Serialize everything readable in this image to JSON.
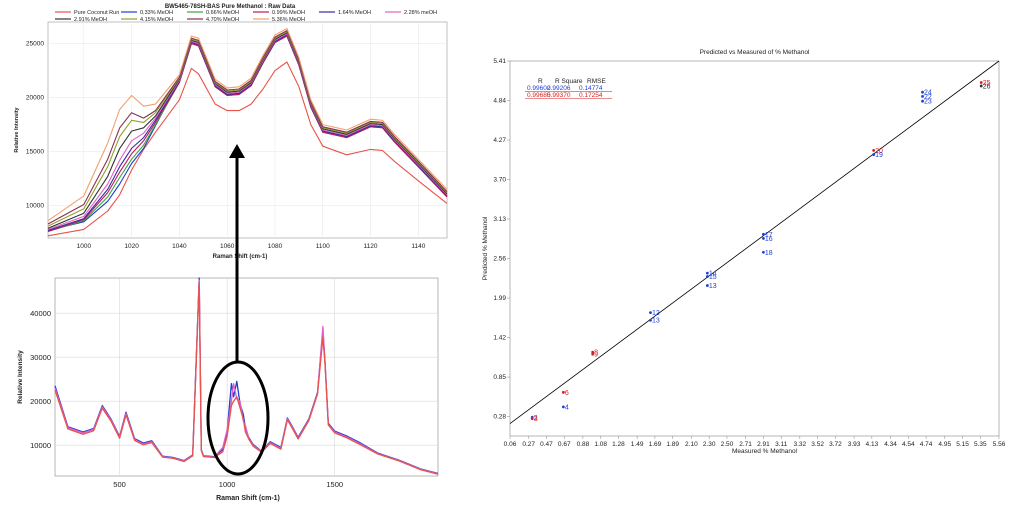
{
  "chart_data": [
    {
      "type": "line",
      "title": "BW5465-78SH-BAS Pure Methanol : Raw Data",
      "xlabel": "Raman Shift (cm-1)",
      "ylabel": "Relative Intensity",
      "xlim": [
        985,
        1152
      ],
      "ylim": [
        7000,
        27000
      ],
      "x_ticks": [
        "1000",
        "1020",
        "1040",
        "1060",
        "1080",
        "1100",
        "1120",
        "1140"
      ],
      "y_ticks": [
        "10000",
        "15000",
        "20000",
        "25000"
      ],
      "legend_position": "top",
      "x": [
        985,
        1000,
        1010,
        1015,
        1020,
        1025,
        1030,
        1040,
        1045,
        1048,
        1055,
        1060,
        1065,
        1070,
        1075,
        1080,
        1085,
        1090,
        1095,
        1100,
        1110,
        1120,
        1125,
        1130,
        1140,
        1152
      ],
      "series": [
        {
          "name": "Pure Coconut Run",
          "color": "#e8534b",
          "values": [
            7200,
            7800,
            9500,
            11000,
            13300,
            15200,
            16800,
            19800,
            22700,
            22200,
            19400,
            18800,
            18800,
            19400,
            20800,
            22500,
            23300,
            21000,
            17500,
            15500,
            14700,
            15200,
            15100,
            14100,
            12300,
            10200
          ]
        },
        {
          "name": "0.33% MeOH",
          "color": "#1f3fd6",
          "values": [
            7700,
            8500,
            10400,
            12000,
            13900,
            15300,
            17400,
            21600,
            25200,
            25000,
            21100,
            20300,
            20400,
            21200,
            23300,
            25300,
            25900,
            23200,
            19200,
            16900,
            16400,
            17400,
            17300,
            16000,
            13700,
            10900
          ]
        },
        {
          "name": "0.66% MeOH",
          "color": "#3aa63a",
          "values": [
            7600,
            8600,
            10800,
            12600,
            14300,
            15600,
            17500,
            21400,
            25000,
            24800,
            21000,
            20200,
            20300,
            21100,
            23200,
            25100,
            25700,
            23000,
            19100,
            16800,
            16300,
            17300,
            17200,
            15900,
            13600,
            10800
          ]
        },
        {
          "name": "0.99% MeOH",
          "color": "#c2185b",
          "values": [
            7600,
            8700,
            11200,
            13100,
            14800,
            16000,
            17700,
            21400,
            25000,
            24800,
            21000,
            20200,
            20300,
            21100,
            23200,
            25100,
            25700,
            23000,
            19100,
            16800,
            16300,
            17300,
            17200,
            15900,
            13600,
            10800
          ]
        },
        {
          "name": "1.64% MeOH",
          "color": "#3b2aa0",
          "values": [
            7700,
            8800,
            11500,
            13600,
            15300,
            16300,
            17900,
            21500,
            25100,
            24900,
            21100,
            20300,
            20400,
            21200,
            23300,
            25200,
            25800,
            23100,
            19200,
            16900,
            16400,
            17400,
            17300,
            16000,
            13700,
            10900
          ]
        },
        {
          "name": "2.28% meOH",
          "color": "#e060c8",
          "values": [
            7800,
            9000,
            12000,
            14200,
            16000,
            16700,
            18100,
            21600,
            25200,
            25000,
            21200,
            20400,
            20500,
            21300,
            23400,
            25300,
            25900,
            23200,
            19300,
            17000,
            16500,
            17500,
            17400,
            16100,
            13800,
            11000
          ]
        },
        {
          "name": "2.91% MeOH",
          "color": "#333333",
          "values": [
            7900,
            9300,
            12700,
            15300,
            16900,
            17200,
            18300,
            21700,
            25300,
            25100,
            21300,
            20500,
            20600,
            21400,
            23500,
            25400,
            26000,
            23300,
            19400,
            17100,
            16600,
            17600,
            17500,
            16200,
            13900,
            11100
          ]
        },
        {
          "name": "4.15% MeOH",
          "color": "#8fa32a",
          "values": [
            8100,
            9700,
            13600,
            16400,
            17900,
            17700,
            18600,
            21800,
            25400,
            25200,
            21400,
            20600,
            20700,
            21500,
            23600,
            25500,
            26100,
            23400,
            19500,
            17200,
            16700,
            17700,
            17600,
            16300,
            14000,
            11200
          ]
        },
        {
          "name": "4.70% MeOH",
          "color": "#8a3050",
          "values": [
            8300,
            10100,
            14300,
            17200,
            18600,
            18100,
            18800,
            21900,
            25500,
            25300,
            21500,
            20700,
            20800,
            21600,
            23700,
            25600,
            26200,
            23500,
            19600,
            17300,
            16800,
            17800,
            17700,
            16400,
            14100,
            11300
          ]
        },
        {
          "name": "5.36% MeOH",
          "color": "#f0a070",
          "values": [
            8600,
            10900,
            15800,
            18900,
            20200,
            19200,
            19400,
            22100,
            25700,
            25500,
            21700,
            20900,
            21000,
            21800,
            23900,
            25800,
            26400,
            23700,
            19800,
            17500,
            17000,
            18000,
            17900,
            16600,
            14300,
            11500
          ]
        }
      ]
    },
    {
      "type": "line",
      "title": "",
      "xlabel": "Raman Shift (cm-1)",
      "ylabel": "Relative Intensity",
      "xlim": [
        200,
        1980
      ],
      "ylim": [
        3000,
        48000
      ],
      "x_ticks": [
        "500",
        "1000",
        "1500"
      ],
      "y_ticks": [
        "10000",
        "20000",
        "30000",
        "40000"
      ],
      "x": [
        200,
        260,
        330,
        380,
        420,
        460,
        500,
        530,
        570,
        610,
        650,
        700,
        750,
        800,
        840,
        870,
        880,
        890,
        940,
        980,
        1000,
        1020,
        1030,
        1045,
        1060,
        1075,
        1085,
        1100,
        1120,
        1160,
        1200,
        1250,
        1280,
        1300,
        1330,
        1380,
        1420,
        1445,
        1455,
        1470,
        1500,
        1560,
        1620,
        1700,
        1800,
        1900,
        1980
      ],
      "series": [
        {
          "color": "#1f3fd6",
          "values": [
            23500,
            14200,
            13000,
            13800,
            19000,
            16000,
            12000,
            17500,
            11500,
            10500,
            11000,
            7500,
            7200,
            6500,
            7800,
            48000,
            9000,
            7600,
            7400,
            9000,
            13000,
            24000,
            21000,
            24500,
            19500,
            17000,
            14000,
            11800,
            10200,
            8600,
            10800,
            9500,
            16200,
            14500,
            11800,
            16000,
            22000,
            36000,
            29000,
            15000,
            13200,
            12000,
            10500,
            8200,
            6600,
            4600,
            3600
          ]
        },
        {
          "color": "#e060c8",
          "values": [
            23000,
            14000,
            12800,
            13600,
            18700,
            15800,
            11800,
            17200,
            11300,
            10300,
            10800,
            7400,
            7100,
            6400,
            7700,
            47500,
            8900,
            7500,
            7300,
            9500,
            13500,
            20000,
            24000,
            20500,
            20000,
            15500,
            14500,
            11600,
            10000,
            8500,
            10600,
            9300,
            16000,
            14300,
            11600,
            15800,
            21800,
            37000,
            28800,
            14800,
            13000,
            11800,
            10300,
            8100,
            6500,
            4500,
            3500
          ]
        },
        {
          "color": "#e8534b",
          "values": [
            22500,
            13700,
            12500,
            13300,
            18400,
            15500,
            11600,
            16900,
            11100,
            10100,
            10600,
            7300,
            7000,
            6300,
            7600,
            47000,
            8800,
            7400,
            7200,
            8500,
            12000,
            19000,
            20000,
            21000,
            18500,
            16000,
            13000,
            11400,
            9800,
            8400,
            10400,
            9100,
            15800,
            14100,
            11400,
            15600,
            21600,
            34500,
            28600,
            14600,
            12800,
            11600,
            10100,
            8000,
            6400,
            4400,
            3400
          ]
        }
      ]
    },
    {
      "type": "scatter",
      "title": "Predicted vs Measured of % Methanol",
      "xlabel": "Measured % Methanol",
      "ylabel": "Predicted % Methanol",
      "xlim": [
        0.06,
        5.56
      ],
      "ylim": [
        0.0,
        5.41
      ],
      "x_ticks": [
        "0.06",
        "0.27",
        "0.47",
        "0.67",
        "0.88",
        "1.08",
        "1.28",
        "1.49",
        "1.69",
        "1.89",
        "2.10",
        "2.30",
        "2.50",
        "2.71",
        "2.91",
        "3.11",
        "3.32",
        "3.52",
        "3.72",
        "3.93",
        "4.13",
        "4.34",
        "4.54",
        "4.74",
        "4.95",
        "5.15",
        "5.35",
        "5.56"
      ],
      "y_ticks": [
        "5.41",
        "4.84",
        "4.27",
        "3.70",
        "3.13",
        "2.56",
        "1.99",
        "1.42",
        "0.85",
        "0.28"
      ],
      "stats_table": {
        "headers": [
          "R",
          "R Square",
          "RMSE"
        ],
        "rows": [
          {
            "color": "#1f3fd6",
            "values": [
              "0.99602",
              "0.99206",
              "0.14774"
            ]
          },
          {
            "color": "#d61f1f",
            "values": [
              "0.99685",
              "0.99370",
              "0.17254"
            ]
          }
        ]
      },
      "fit_line": {
        "x": [
          0.06,
          5.56
        ],
        "y": [
          0.18,
          5.41
        ]
      },
      "points": [
        {
          "label": "2",
          "x": 0.31,
          "y": 0.27,
          "color": "#1f3fd6"
        },
        {
          "label": "3",
          "x": 0.31,
          "y": 0.25,
          "color": "#d61f1f"
        },
        {
          "label": "4",
          "x": 0.66,
          "y": 0.42,
          "color": "#1f3fd6"
        },
        {
          "label": "6",
          "x": 0.66,
          "y": 0.63,
          "color": "#d61f1f"
        },
        {
          "label": "8",
          "x": 0.99,
          "y": 1.21,
          "color": "#d61f1f"
        },
        {
          "label": "9",
          "x": 0.99,
          "y": 1.18,
          "color": "#d61f1f"
        },
        {
          "label": "12",
          "x": 1.64,
          "y": 1.78,
          "color": "#1f3fd6"
        },
        {
          "label": "13",
          "x": 1.64,
          "y": 1.67,
          "color": "#1f3fd6"
        },
        {
          "label": "13",
          "x": 2.28,
          "y": 2.17,
          "color": "#1f3fd6"
        },
        {
          "label": "14",
          "x": 2.28,
          "y": 2.35,
          "color": "#1f3fd6"
        },
        {
          "label": "15",
          "x": 2.28,
          "y": 2.3,
          "color": "#1f3fd6"
        },
        {
          "label": "17",
          "x": 2.91,
          "y": 2.91,
          "color": "#1f3fd6"
        },
        {
          "label": "16",
          "x": 2.91,
          "y": 2.85,
          "color": "#1f3fd6"
        },
        {
          "label": "18",
          "x": 2.91,
          "y": 2.65,
          "color": "#1f3fd6"
        },
        {
          "label": "20",
          "x": 4.15,
          "y": 4.12,
          "color": "#d61f1f"
        },
        {
          "label": "19",
          "x": 4.15,
          "y": 4.06,
          "color": "#1f3fd6"
        },
        {
          "label": "24",
          "x": 4.7,
          "y": 4.96,
          "color": "#1f3fd6"
        },
        {
          "label": "22",
          "x": 4.7,
          "y": 4.9,
          "color": "#1f3fd6"
        },
        {
          "label": "23",
          "x": 4.7,
          "y": 4.83,
          "color": "#1f3fd6"
        },
        {
          "label": "25",
          "x": 5.36,
          "y": 5.1,
          "color": "#d61f1f"
        },
        {
          "label": "26",
          "x": 5.36,
          "y": 5.05,
          "color": "#333333"
        }
      ]
    }
  ]
}
